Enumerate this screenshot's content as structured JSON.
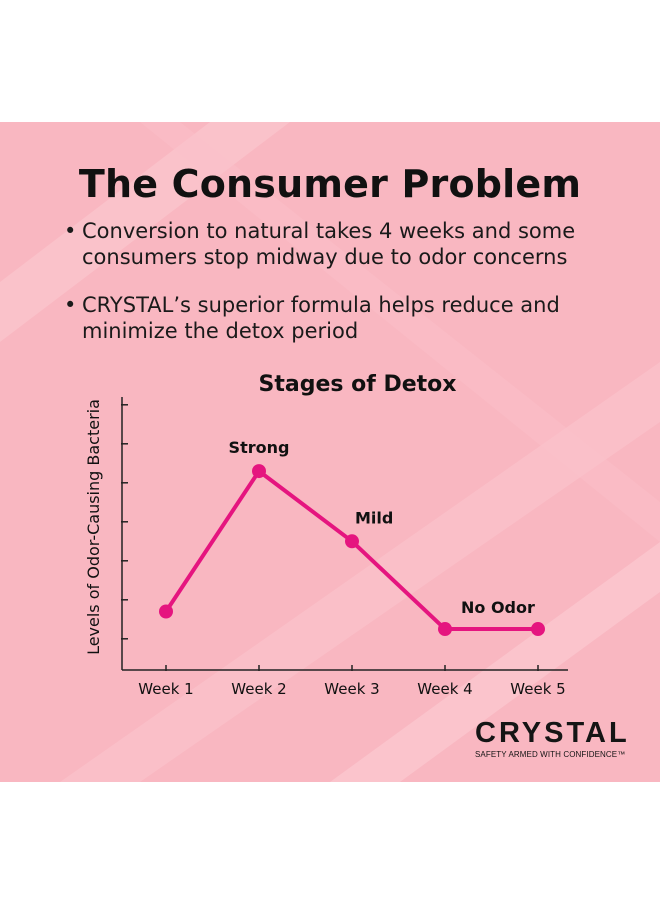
{
  "title": "The Consumer Problem",
  "bullets": [
    "Conversion to natural takes 4 weeks and some consumers stop midway due to odor concerns",
    "CRYSTAL’s superior formula helps reduce and minimize the detox period"
  ],
  "bullet_symbol": "•",
  "chart_data": {
    "type": "line",
    "title": "Stages of Detox",
    "xlabel": "",
    "ylabel": "Levels of Odor-Causing Bacteria",
    "categories": [
      "Week 1",
      "Week 2",
      "Week 3",
      "Week 4",
      "Week 5"
    ],
    "values": [
      0.7,
      4.3,
      2.5,
      0.25,
      0.25
    ],
    "ylim": [
      -0.8,
      6.2
    ],
    "y_ticks": [
      0.0,
      1.0,
      2.0,
      3.0,
      4.0,
      5.0,
      6.0
    ],
    "show_y_tick_labels": false,
    "grid": false,
    "series_color": "#e5157f",
    "annotations": [
      {
        "index": 1,
        "text": "Strong"
      },
      {
        "index": 2,
        "text": "Mild"
      },
      {
        "index": 3,
        "text": "No Odor"
      }
    ]
  },
  "brand": {
    "name": "CRYSTAL",
    "tagline": "SAFETY ARMED WITH CONFIDENCE™"
  },
  "colors": {
    "background": "#f9b7c1",
    "accent": "#e5157f",
    "text": "#111111"
  }
}
